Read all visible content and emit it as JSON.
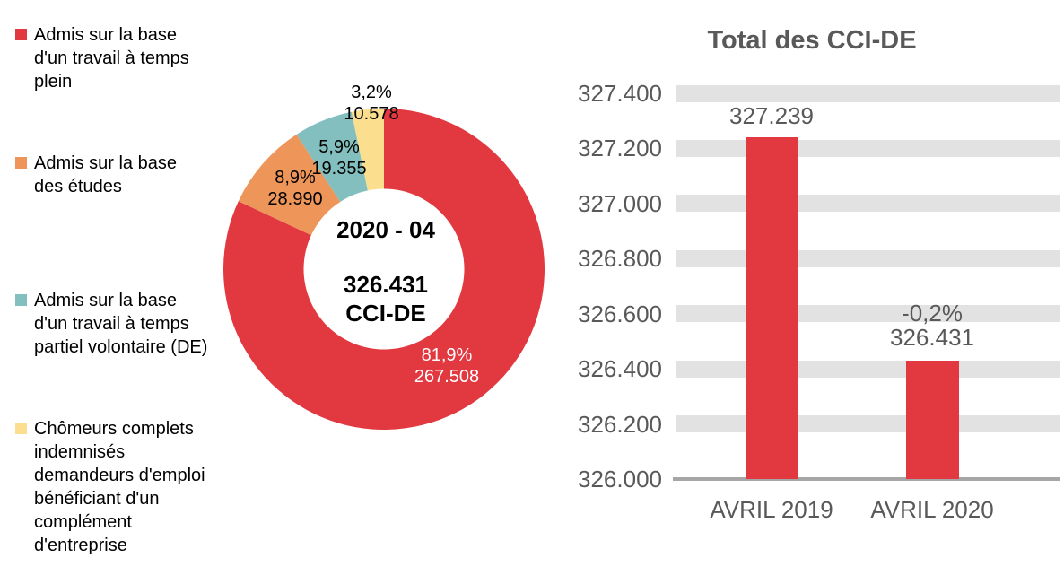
{
  "page": {
    "background": "#FFFFFF"
  },
  "chart_data": [
    {
      "type": "pie",
      "subtype": "donut",
      "title": "",
      "legend_position": "left",
      "center_labels": [
        "2020 - 04",
        "326.431",
        "CCI-DE"
      ],
      "slices": [
        {
          "label": "Admis sur la base d'un travail à temps plein",
          "value": 267508,
          "pct": "81,9%",
          "count": "267.508",
          "color": "#E23940",
          "label_color": "#FFFFFF"
        },
        {
          "label": "Admis sur la base des études",
          "value": 28990,
          "pct": "8,9%",
          "count": "28.990",
          "color": "#EE9659",
          "label_color": "#000000"
        },
        {
          "label": "Admis sur la base d'un travail à temps partiel volontaire (DE)",
          "value": 19355,
          "pct": "5,9%",
          "count": "19.355",
          "color": "#82BFBE",
          "label_color": "#000000"
        },
        {
          "label": "Chômeurs complets indemnisés demandeurs d'emploi bénéficiant d'un complément d'entreprise",
          "value": 10578,
          "pct": "3,2%",
          "count": "10.578",
          "color": "#FBDF8F",
          "label_color": "#000000"
        }
      ]
    },
    {
      "type": "bar",
      "title": "Total des CCI-DE",
      "categories": [
        "AVRIL 2019",
        "AVRIL 2020"
      ],
      "values": [
        327239,
        326431
      ],
      "bar_labels": [
        [
          "327.239"
        ],
        [
          "-0,2%",
          "326.431"
        ]
      ],
      "series_color": "#E23940",
      "ylim": [
        326000,
        327400
      ],
      "ytick_step": 200,
      "ytick_labels": [
        "326.000",
        "326.200",
        "326.400",
        "326.600",
        "326.800",
        "327.000",
        "327.200",
        "327.400"
      ],
      "grid": "horizontal-bands",
      "band_color": "#E2E2E2",
      "axis_color": "#A6A6A6",
      "text_color": "#595959",
      "legend_position": "none"
    }
  ]
}
